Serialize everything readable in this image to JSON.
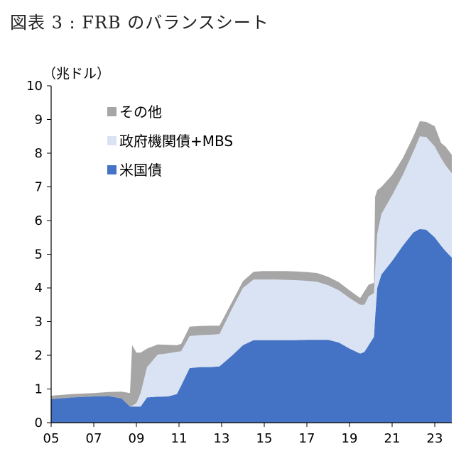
{
  "figure_title": "図表 3 : FRB のバランスシート",
  "chart_data": {
    "type": "area",
    "stacked": true,
    "unit_label": "（兆ドル）",
    "ylim": [
      0,
      10
    ],
    "y_ticks": [
      0,
      1,
      2,
      3,
      4,
      5,
      6,
      7,
      8,
      9,
      10
    ],
    "xlim": [
      2005,
      2023.8
    ],
    "x_ticks": [
      "05",
      "07",
      "09",
      "11",
      "13",
      "15",
      "17",
      "19",
      "21",
      "23"
    ],
    "legend_position": "top-left",
    "grid": false,
    "x": [
      2005.0,
      2006.0,
      2007.0,
      2007.7,
      2008.3,
      2008.7,
      2008.8,
      2009.0,
      2009.2,
      2009.5,
      2010.0,
      2010.5,
      2010.9,
      2011.1,
      2011.5,
      2012.0,
      2012.5,
      2012.9,
      2013.5,
      2014.0,
      2014.5,
      2014.9,
      2015.5,
      2016.0,
      2016.5,
      2017.0,
      2017.5,
      2018.0,
      2018.5,
      2019.0,
      2019.5,
      2019.7,
      2019.9,
      2020.15,
      2020.2,
      2020.3,
      2020.5,
      2021.0,
      2021.5,
      2022.0,
      2022.3,
      2022.6,
      2023.0,
      2023.3,
      2023.5,
      2023.8
    ],
    "series": [
      {
        "name": "米国債",
        "color": "#4472C4",
        "values": [
          0.7,
          0.75,
          0.78,
          0.79,
          0.72,
          0.48,
          0.48,
          0.48,
          0.48,
          0.75,
          0.77,
          0.78,
          0.85,
          1.1,
          1.62,
          1.65,
          1.65,
          1.67,
          2.0,
          2.3,
          2.45,
          2.45,
          2.45,
          2.45,
          2.45,
          2.46,
          2.46,
          2.46,
          2.38,
          2.2,
          2.05,
          2.1,
          2.3,
          2.55,
          3.1,
          4.0,
          4.4,
          4.8,
          5.25,
          5.65,
          5.75,
          5.73,
          5.5,
          5.25,
          5.1,
          4.9
        ]
      },
      {
        "name": "政府機関債+MBS",
        "color": "#DAE3F3",
        "values": [
          0.0,
          0.0,
          0.0,
          0.0,
          0.0,
          0.0,
          0.02,
          0.1,
          0.4,
          0.9,
          1.25,
          1.28,
          1.25,
          1.02,
          0.95,
          0.95,
          0.96,
          0.96,
          1.4,
          1.7,
          1.8,
          1.8,
          1.8,
          1.79,
          1.78,
          1.75,
          1.72,
          1.62,
          1.55,
          1.5,
          1.45,
          1.4,
          1.45,
          1.3,
          1.4,
          1.6,
          1.8,
          1.95,
          2.1,
          2.4,
          2.75,
          2.75,
          2.7,
          2.6,
          2.55,
          2.5
        ]
      },
      {
        "name": "その他",
        "color": "#A6A6A6",
        "values": [
          0.1,
          0.1,
          0.1,
          0.12,
          0.2,
          0.4,
          1.8,
          1.5,
          1.2,
          0.55,
          0.3,
          0.25,
          0.2,
          0.22,
          0.28,
          0.27,
          0.27,
          0.25,
          0.2,
          0.2,
          0.23,
          0.25,
          0.25,
          0.26,
          0.26,
          0.26,
          0.26,
          0.25,
          0.24,
          0.23,
          0.2,
          0.4,
          0.35,
          0.3,
          2.2,
          1.3,
          0.8,
          0.6,
          0.5,
          0.45,
          0.45,
          0.45,
          0.6,
          0.45,
          0.55,
          0.55
        ]
      }
    ]
  }
}
